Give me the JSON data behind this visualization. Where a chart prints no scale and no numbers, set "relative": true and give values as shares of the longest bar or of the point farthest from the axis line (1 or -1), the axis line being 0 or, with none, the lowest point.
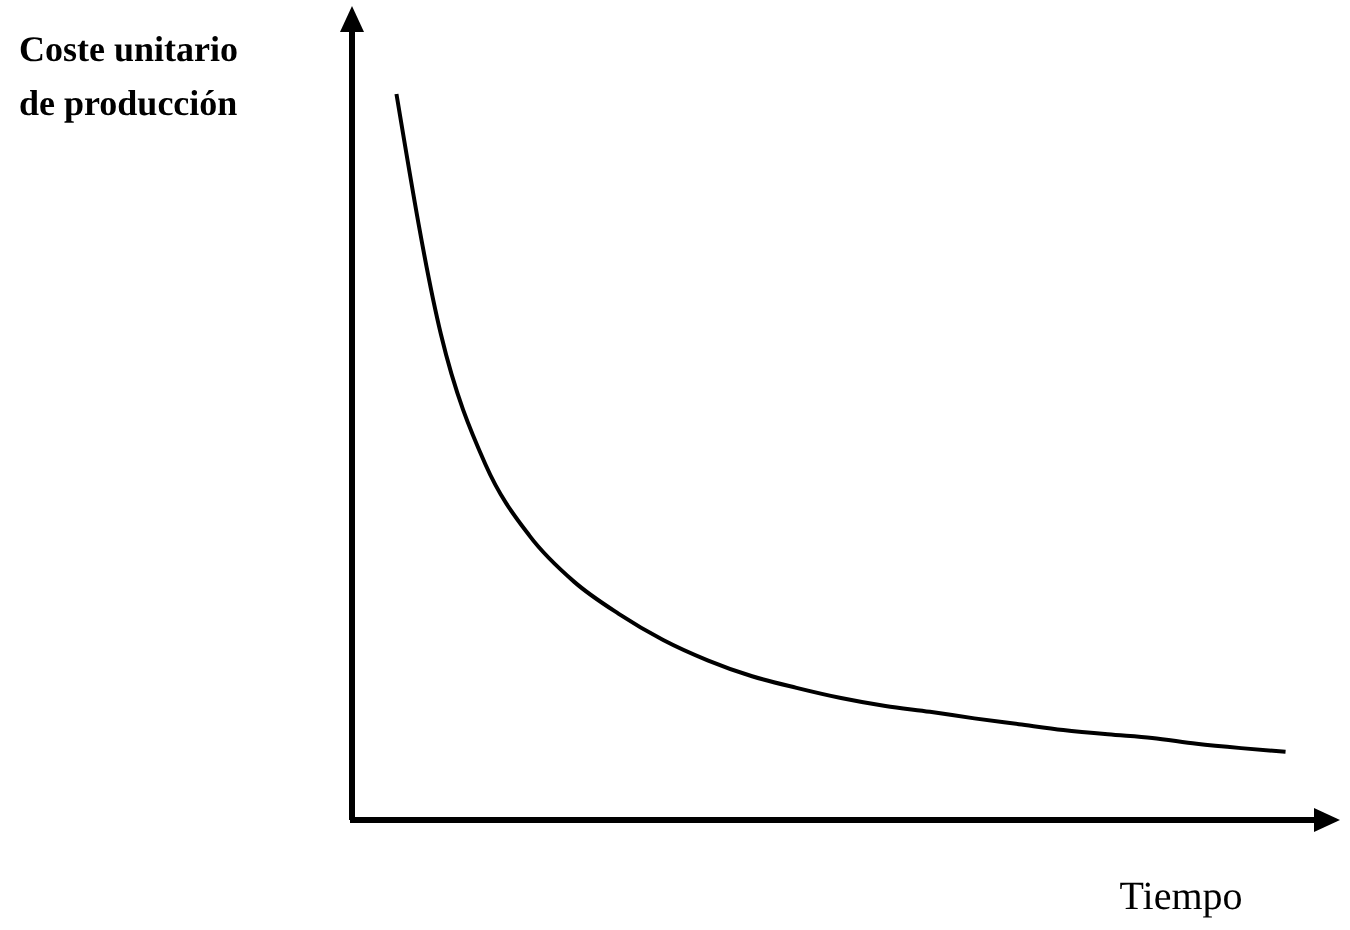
{
  "chart_data": {
    "type": "line",
    "relative": true,
    "ylabel": "Coste unitario\nde producción",
    "xlabel": "Tiempo",
    "color": "#000000",
    "marker": "none",
    "line_style": "solid",
    "grid": false,
    "tick_labels": false,
    "categories": [
      null,
      null,
      null,
      null,
      null,
      null,
      null,
      null,
      null,
      null,
      null,
      null,
      null,
      null,
      null,
      null,
      null,
      null,
      null,
      null,
      null
    ],
    "values": [
      1.0,
      0.669,
      0.49,
      0.391,
      0.328,
      0.284,
      0.248,
      0.22,
      0.198,
      0.182,
      0.168,
      0.157,
      0.149,
      0.14,
      0.132,
      0.124,
      0.118,
      0.113,
      0.105,
      0.099,
      0.094
    ]
  }
}
